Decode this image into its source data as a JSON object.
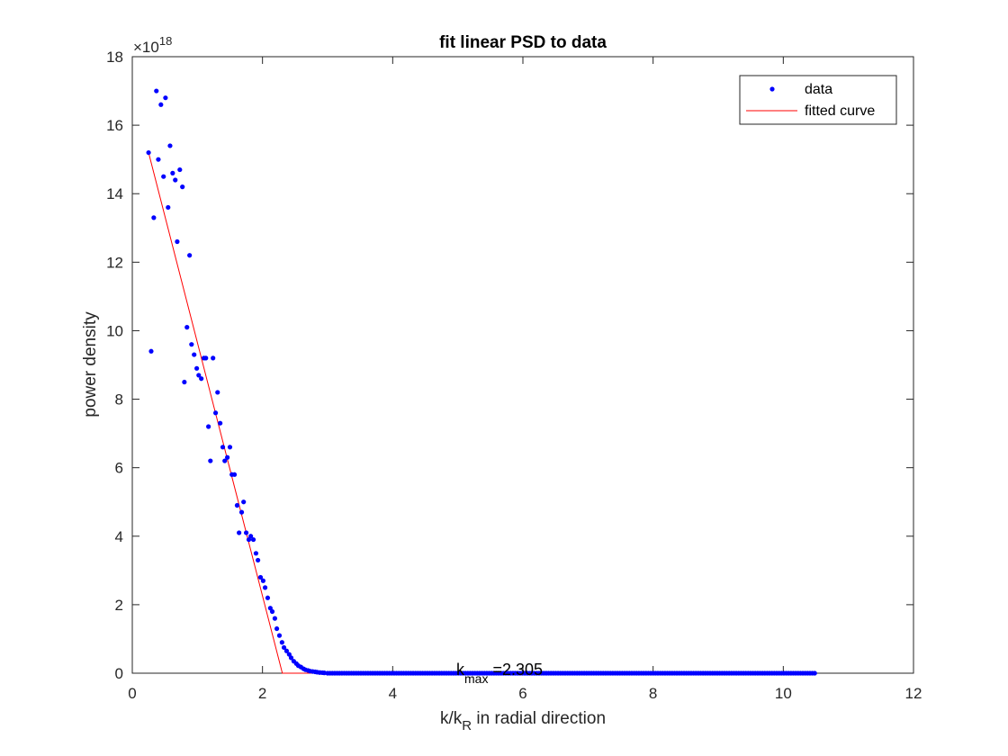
{
  "chart_data": {
    "type": "scatter",
    "title": "fit linear PSD to data",
    "xlabel_main": "k/k",
    "xlabel_sub": "R",
    "xlabel_rest": " in radial direction",
    "ylabel": "power density",
    "y_exponent_base": "×10",
    "y_exponent_power": "18",
    "xlim": [
      0,
      12
    ],
    "ylim": [
      0,
      18
    ],
    "x_ticks": [
      0,
      2,
      4,
      6,
      8,
      10,
      12
    ],
    "y_ticks": [
      0,
      2,
      4,
      6,
      8,
      10,
      12,
      14,
      16,
      18
    ],
    "grid": false,
    "legend_position": "top-right",
    "series": [
      {
        "name": "data",
        "style": "points",
        "color": "#0000ff",
        "points": [
          [
            0.25,
            15.2
          ],
          [
            0.29,
            9.4
          ],
          [
            0.33,
            13.3
          ],
          [
            0.37,
            17.0
          ],
          [
            0.4,
            15.0
          ],
          [
            0.44,
            16.6
          ],
          [
            0.48,
            14.5
          ],
          [
            0.51,
            16.8
          ],
          [
            0.55,
            13.6
          ],
          [
            0.58,
            15.4
          ],
          [
            0.62,
            14.6
          ],
          [
            0.66,
            14.4
          ],
          [
            0.69,
            12.6
          ],
          [
            0.73,
            14.7
          ],
          [
            0.77,
            14.2
          ],
          [
            0.8,
            8.5
          ],
          [
            0.84,
            10.1
          ],
          [
            0.88,
            12.2
          ],
          [
            0.91,
            9.6
          ],
          [
            0.95,
            9.3
          ],
          [
            0.99,
            8.9
          ],
          [
            1.02,
            8.7
          ],
          [
            1.06,
            8.6
          ],
          [
            1.1,
            9.2
          ],
          [
            1.13,
            9.2
          ],
          [
            1.17,
            7.2
          ],
          [
            1.2,
            6.2
          ],
          [
            1.24,
            9.2
          ],
          [
            1.28,
            7.6
          ],
          [
            1.31,
            8.2
          ],
          [
            1.35,
            7.3
          ],
          [
            1.39,
            6.6
          ],
          [
            1.42,
            6.2
          ],
          [
            1.46,
            6.3
          ],
          [
            1.5,
            6.6
          ],
          [
            1.53,
            5.8
          ],
          [
            1.57,
            5.8
          ],
          [
            1.61,
            4.9
          ],
          [
            1.64,
            4.1
          ],
          [
            1.68,
            4.7
          ],
          [
            1.71,
            5.0
          ],
          [
            1.75,
            4.1
          ],
          [
            1.79,
            3.9
          ],
          [
            1.82,
            4.0
          ],
          [
            1.86,
            3.9
          ],
          [
            1.9,
            3.5
          ],
          [
            1.93,
            3.3
          ],
          [
            1.97,
            2.8
          ],
          [
            2.01,
            2.7
          ],
          [
            2.04,
            2.5
          ],
          [
            2.08,
            2.2
          ],
          [
            2.12,
            1.9
          ],
          [
            2.15,
            1.8
          ],
          [
            2.19,
            1.6
          ],
          [
            2.22,
            1.3
          ],
          [
            2.26,
            1.1
          ],
          [
            2.3,
            0.9
          ],
          [
            2.33,
            0.75
          ],
          [
            2.37,
            0.65
          ],
          [
            2.41,
            0.55
          ],
          [
            2.44,
            0.45
          ],
          [
            2.48,
            0.35
          ],
          [
            2.52,
            0.28
          ],
          [
            2.55,
            0.22
          ],
          [
            2.59,
            0.18
          ],
          [
            2.63,
            0.13
          ],
          [
            2.66,
            0.1
          ],
          [
            2.7,
            0.08
          ],
          [
            2.73,
            0.06
          ],
          [
            2.77,
            0.05
          ],
          [
            2.81,
            0.04
          ],
          [
            2.84,
            0.03
          ],
          [
            2.88,
            0.02
          ],
          [
            2.92,
            0.015
          ],
          [
            2.95,
            0.01
          ]
        ],
        "tail_x_range": [
          3.0,
          10.5
        ],
        "tail_spacing": 0.0365,
        "tail_y": 0
      },
      {
        "name": "fitted curve",
        "style": "line",
        "color": "#ff0000",
        "points": [
          [
            0.25,
            15.2
          ],
          [
            2.305,
            0
          ],
          [
            10.5,
            0
          ]
        ]
      }
    ],
    "annotation": {
      "main": "k",
      "sub": "max",
      "rest": " =2.305",
      "x": 5.0,
      "y": 0
    }
  }
}
